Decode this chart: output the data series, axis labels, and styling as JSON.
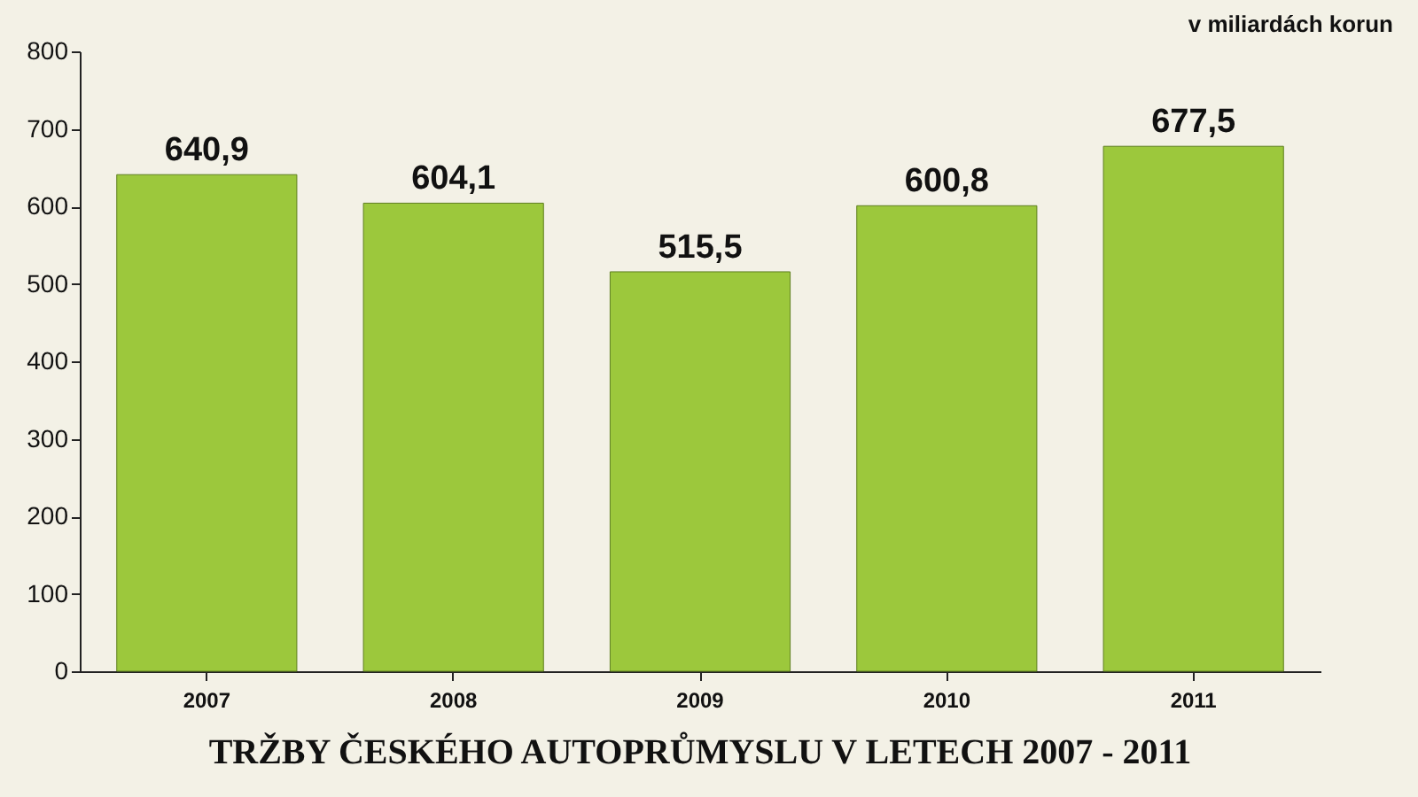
{
  "chart_data": {
    "type": "bar",
    "title": "TRŽBY ČESKÉHO AUTOPRŮMYSLU V LETECH 2007 - 2011",
    "annotations": [
      "v miliardách korun"
    ],
    "categories": [
      "2007",
      "2008",
      "2009",
      "2010",
      "2011"
    ],
    "values": [
      640.9,
      604.1,
      515.5,
      600.8,
      677.5
    ],
    "value_labels": [
      "640,9",
      "604,1",
      "515,5",
      "600,8",
      "677,5"
    ],
    "color": "#9cc83c",
    "ylim": [
      0,
      800
    ],
    "yticks": [
      0,
      100,
      200,
      300,
      400,
      500,
      600,
      700,
      800
    ],
    "grid": false
  }
}
